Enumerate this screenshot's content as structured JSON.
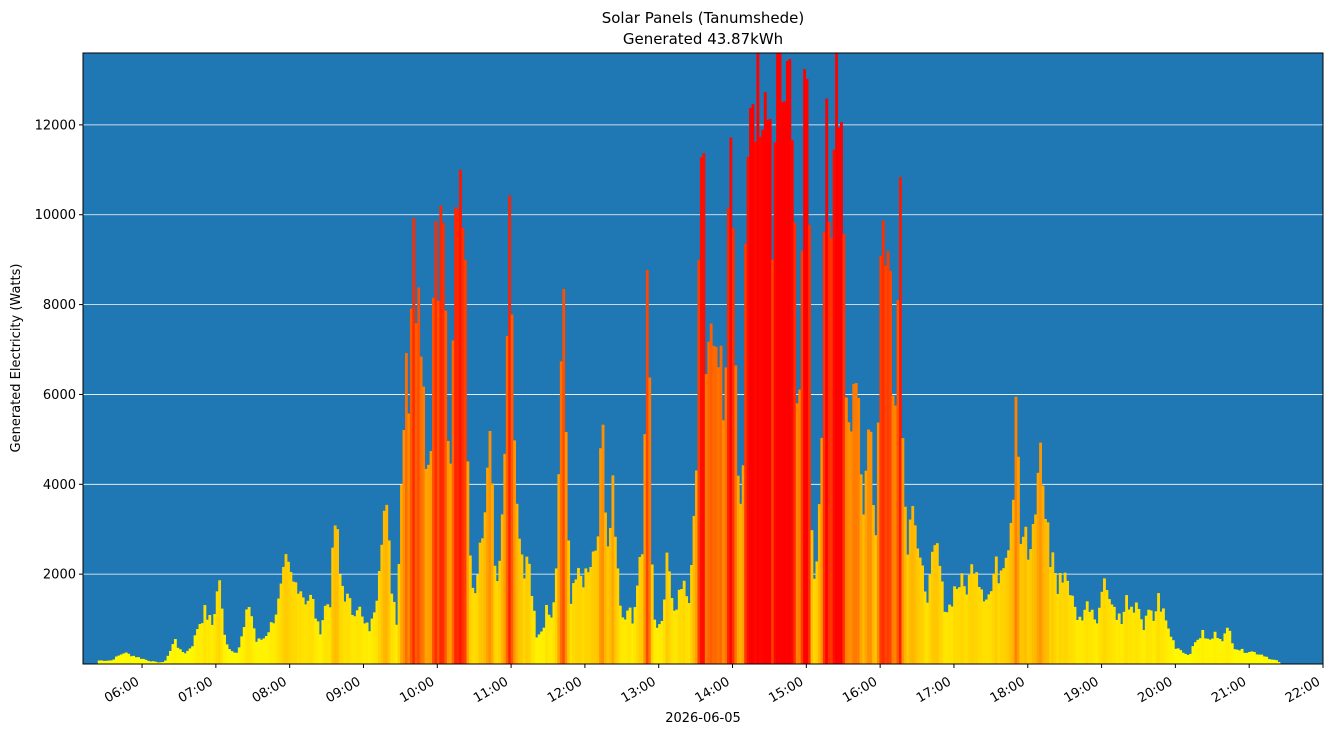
{
  "chart_data": {
    "type": "bar",
    "title_line1": "Solar Panels (Tanumshede)",
    "title_line2": "Generated 43.87kWh",
    "xlabel": "2026-06-05",
    "ylabel": "Generated Electricity (Watts)",
    "x_unit": "hours",
    "xlim": [
      5.2,
      22.0
    ],
    "ylim": [
      0,
      13600
    ],
    "x_ticks": [
      6,
      7,
      8,
      9,
      10,
      11,
      12,
      13,
      14,
      15,
      16,
      17,
      18,
      19,
      20,
      21,
      22
    ],
    "x_tick_labels": [
      "06:00",
      "07:00",
      "08:00",
      "09:00",
      "10:00",
      "11:00",
      "12:00",
      "13:00",
      "14:00",
      "15:00",
      "16:00",
      "17:00",
      "18:00",
      "19:00",
      "20:00",
      "21:00",
      "22:00"
    ],
    "y_ticks": [
      2000,
      4000,
      6000,
      8000,
      10000,
      12000
    ],
    "y_tick_labels": [
      "2000",
      "4000",
      "6000",
      "8000",
      "10000",
      "12000"
    ],
    "grid": "horizontal",
    "background_color": "#1f77b4",
    "color_scale": [
      "#ffff00",
      "#ff0000"
    ],
    "color_scale_max": 12000,
    "bar_width_hours": 0.0333,
    "anchors": [
      [
        5.4,
        80
      ],
      [
        5.58,
        80
      ],
      [
        5.75,
        260
      ],
      [
        5.95,
        150
      ],
      [
        6.08,
        80
      ],
      [
        6.2,
        40
      ],
      [
        6.3,
        40
      ],
      [
        6.4,
        350
      ],
      [
        6.45,
        620
      ],
      [
        6.5,
        300
      ],
      [
        6.6,
        260
      ],
      [
        6.7,
        500
      ],
      [
        6.75,
        850
      ],
      [
        6.85,
        1200
      ],
      [
        6.95,
        900
      ],
      [
        7.05,
        2000
      ],
      [
        7.1,
        700
      ],
      [
        7.2,
        300
      ],
      [
        7.3,
        300
      ],
      [
        7.38,
        800
      ],
      [
        7.45,
        1400
      ],
      [
        7.55,
        500
      ],
      [
        7.65,
        600
      ],
      [
        7.75,
        900
      ],
      [
        7.85,
        1400
      ],
      [
        7.95,
        2250
      ],
      [
        8.05,
        1800
      ],
      [
        8.12,
        1900
      ],
      [
        8.2,
        1500
      ],
      [
        8.3,
        1500
      ],
      [
        8.4,
        700
      ],
      [
        8.48,
        1300
      ],
      [
        8.55,
        1500
      ],
      [
        8.62,
        3400
      ],
      [
        8.68,
        2000
      ],
      [
        8.75,
        1600
      ],
      [
        8.85,
        1200
      ],
      [
        8.92,
        1400
      ],
      [
        9.0,
        900
      ],
      [
        9.1,
        800
      ],
      [
        9.18,
        1700
      ],
      [
        9.25,
        3300
      ],
      [
        9.3,
        3600
      ],
      [
        9.38,
        1800
      ],
      [
        9.45,
        1000
      ],
      [
        9.52,
        4500
      ],
      [
        9.57,
        7800
      ],
      [
        9.62,
        6000
      ],
      [
        9.66,
        10200
      ],
      [
        9.7,
        8500
      ],
      [
        9.76,
        10000
      ],
      [
        9.8,
        6500
      ],
      [
        9.85,
        5000
      ],
      [
        9.9,
        4500
      ],
      [
        9.97,
        10600
      ],
      [
        10.03,
        9500
      ],
      [
        10.08,
        10300
      ],
      [
        10.13,
        6000
      ],
      [
        10.18,
        4000
      ],
      [
        10.25,
        10500
      ],
      [
        10.3,
        11800
      ],
      [
        10.34,
        12000
      ],
      [
        10.4,
        6200
      ],
      [
        10.45,
        2500
      ],
      [
        10.5,
        1500
      ],
      [
        10.55,
        2500
      ],
      [
        10.62,
        3000
      ],
      [
        10.68,
        4500
      ],
      [
        10.73,
        4900
      ],
      [
        10.78,
        2200
      ],
      [
        10.85,
        2100
      ],
      [
        10.9,
        4200
      ],
      [
        10.95,
        7000
      ],
      [
        10.99,
        11600
      ],
      [
        11.03,
        5000
      ],
      [
        11.08,
        3200
      ],
      [
        11.13,
        2800
      ],
      [
        11.18,
        1800
      ],
      [
        11.22,
        2400
      ],
      [
        11.28,
        1500
      ],
      [
        11.35,
        500
      ],
      [
        11.42,
        800
      ],
      [
        11.48,
        1200
      ],
      [
        11.55,
        1000
      ],
      [
        11.62,
        2200
      ],
      [
        11.67,
        6000
      ],
      [
        11.7,
        10000
      ],
      [
        11.75,
        4000
      ],
      [
        11.8,
        1500
      ],
      [
        11.85,
        2000
      ],
      [
        11.92,
        1900
      ],
      [
        12.0,
        2000
      ],
      [
        12.05,
        2400
      ],
      [
        12.1,
        2500
      ],
      [
        12.15,
        2800
      ],
      [
        12.2,
        4000
      ],
      [
        12.25,
        5700
      ],
      [
        12.3,
        2600
      ],
      [
        12.38,
        4200
      ],
      [
        12.45,
        1800
      ],
      [
        12.52,
        800
      ],
      [
        12.58,
        1300
      ],
      [
        12.65,
        1000
      ],
      [
        12.72,
        2000
      ],
      [
        12.78,
        2500
      ],
      [
        12.85,
        11000
      ],
      [
        12.88,
        5900
      ],
      [
        12.92,
        1200
      ],
      [
        12.98,
        800
      ],
      [
        13.05,
        1200
      ],
      [
        13.12,
        2600
      ],
      [
        13.2,
        1000
      ],
      [
        13.28,
        1800
      ],
      [
        13.35,
        2000
      ],
      [
        13.42,
        1500
      ],
      [
        13.48,
        3200
      ],
      [
        13.52,
        6000
      ],
      [
        13.56,
        11800
      ],
      [
        13.6,
        13600
      ],
      [
        13.65,
        6000
      ],
      [
        13.7,
        7800
      ],
      [
        13.75,
        8000
      ],
      [
        13.8,
        6000
      ],
      [
        13.85,
        6500
      ],
      [
        13.9,
        5100
      ],
      [
        13.95,
        10500
      ],
      [
        13.99,
        13600
      ],
      [
        14.05,
        6500
      ],
      [
        14.1,
        3200
      ],
      [
        14.15,
        4700
      ],
      [
        14.2,
        12300
      ],
      [
        14.25,
        13600
      ],
      [
        14.3,
        13600
      ],
      [
        14.4,
        11000
      ],
      [
        14.48,
        13600
      ],
      [
        14.55,
        10000
      ],
      [
        14.62,
        13600
      ],
      [
        14.7,
        13600
      ],
      [
        14.75,
        13600
      ],
      [
        14.82,
        13600
      ],
      [
        14.88,
        4500
      ],
      [
        14.92,
        6500
      ],
      [
        14.97,
        13600
      ],
      [
        15.03,
        12600
      ],
      [
        15.08,
        2200
      ],
      [
        15.13,
        2200
      ],
      [
        15.18,
        3400
      ],
      [
        15.22,
        5500
      ],
      [
        15.27,
        13600
      ],
      [
        15.32,
        7500
      ],
      [
        15.37,
        13600
      ],
      [
        15.42,
        12600
      ],
      [
        15.48,
        13600
      ],
      [
        15.55,
        6000
      ],
      [
        15.6,
        5600
      ],
      [
        15.65,
        5600
      ],
      [
        15.7,
        6200
      ],
      [
        15.75,
        3800
      ],
      [
        15.8,
        4200
      ],
      [
        15.85,
        6500
      ],
      [
        15.9,
        4000
      ],
      [
        15.95,
        3000
      ],
      [
        16.03,
        11800
      ],
      [
        16.08,
        8400
      ],
      [
        16.13,
        9600
      ],
      [
        16.18,
        6600
      ],
      [
        16.23,
        7400
      ],
      [
        16.27,
        11700
      ],
      [
        16.32,
        3900
      ],
      [
        16.37,
        2800
      ],
      [
        16.42,
        4200
      ],
      [
        16.47,
        3300
      ],
      [
        16.52,
        2200
      ],
      [
        16.58,
        2000
      ],
      [
        16.65,
        1600
      ],
      [
        16.72,
        2400
      ],
      [
        16.78,
        2600
      ],
      [
        16.85,
        1500
      ],
      [
        16.92,
        1200
      ],
      [
        17.0,
        1700
      ],
      [
        17.08,
        1900
      ],
      [
        17.15,
        1700
      ],
      [
        17.22,
        2000
      ],
      [
        17.28,
        2500
      ],
      [
        17.35,
        1900
      ],
      [
        17.42,
        1600
      ],
      [
        17.5,
        1600
      ],
      [
        17.55,
        2200
      ],
      [
        17.62,
        2100
      ],
      [
        17.68,
        2600
      ],
      [
        17.75,
        3000
      ],
      [
        17.8,
        4000
      ],
      [
        17.85,
        7300
      ],
      [
        17.9,
        2800
      ],
      [
        17.95,
        3200
      ],
      [
        18.0,
        2400
      ],
      [
        18.05,
        2700
      ],
      [
        18.1,
        3100
      ],
      [
        18.15,
        5100
      ],
      [
        18.2,
        4200
      ],
      [
        18.25,
        3400
      ],
      [
        18.3,
        2400
      ],
      [
        18.35,
        2500
      ],
      [
        18.4,
        1600
      ],
      [
        18.48,
        2200
      ],
      [
        18.55,
        1900
      ],
      [
        18.62,
        1300
      ],
      [
        18.7,
        1000
      ],
      [
        18.78,
        1300
      ],
      [
        18.85,
        1400
      ],
      [
        18.92,
        1000
      ],
      [
        19.0,
        1500
      ],
      [
        19.05,
        2300
      ],
      [
        19.1,
        1500
      ],
      [
        19.2,
        1200
      ],
      [
        19.28,
        900
      ],
      [
        19.35,
        1600
      ],
      [
        19.42,
        1000
      ],
      [
        19.5,
        1400
      ],
      [
        19.57,
        800
      ],
      [
        19.64,
        1200
      ],
      [
        19.7,
        1000
      ],
      [
        19.77,
        1500
      ],
      [
        19.83,
        1200
      ],
      [
        19.9,
        800
      ],
      [
        20.0,
        400
      ],
      [
        20.1,
        300
      ],
      [
        20.15,
        200
      ],
      [
        20.22,
        300
      ],
      [
        20.3,
        600
      ],
      [
        20.38,
        700
      ],
      [
        20.45,
        500
      ],
      [
        20.55,
        700
      ],
      [
        20.65,
        600
      ],
      [
        20.72,
        800
      ],
      [
        20.8,
        400
      ],
      [
        20.9,
        300
      ],
      [
        21.0,
        300
      ],
      [
        21.1,
        250
      ],
      [
        21.2,
        200
      ],
      [
        21.3,
        100
      ],
      [
        21.38,
        80
      ],
      [
        21.42,
        0
      ]
    ]
  }
}
